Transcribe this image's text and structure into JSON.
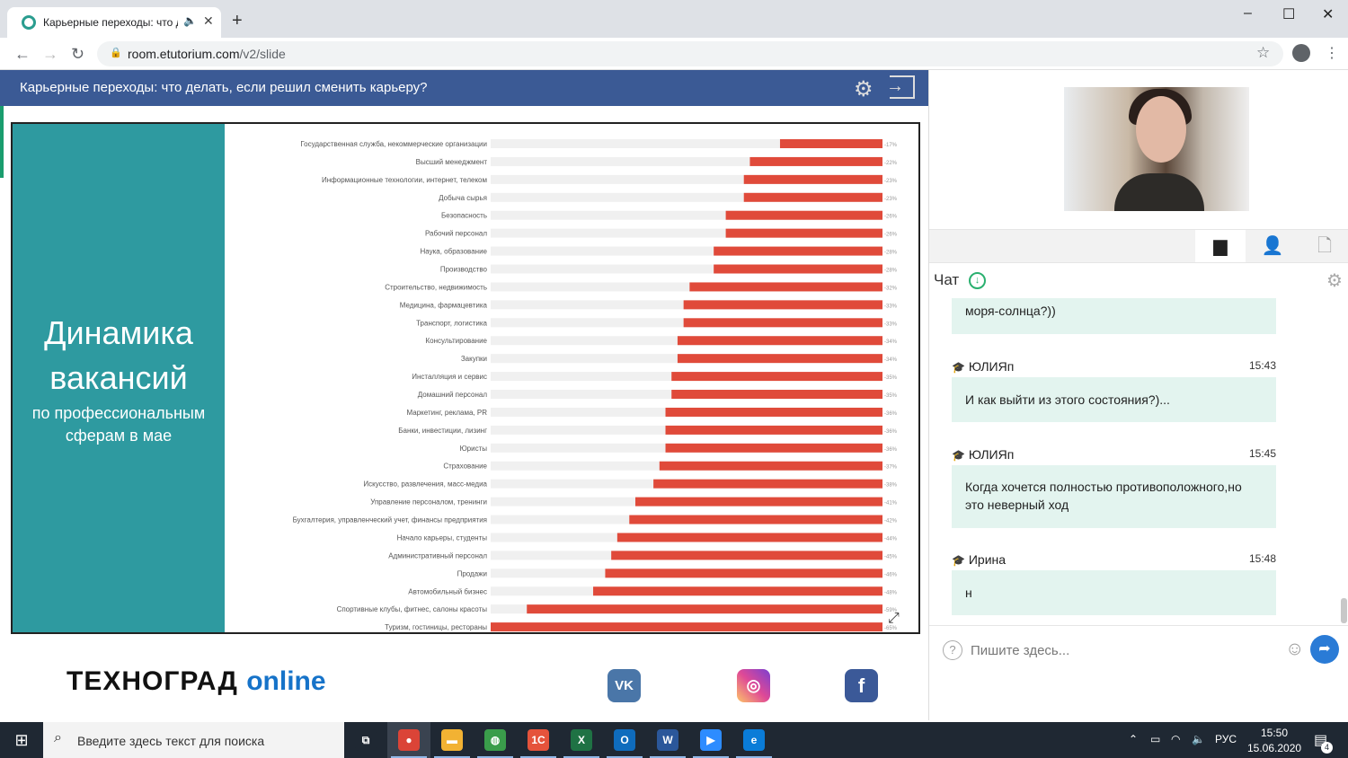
{
  "browser": {
    "tab_title": "Карьерные переходы: что д",
    "tab_audio_icon": "speaker-icon",
    "new_tab": "+",
    "url_host": "room.etutorium.com",
    "url_path": "/v2/slide",
    "window_controls": [
      "–",
      "☐",
      "✕"
    ]
  },
  "slide": {
    "header_title": "Карьерные переходы: что делать, если решил сменить карьеру?",
    "left_title_line1": "Динамика",
    "left_title_line2": "вакансий",
    "left_subtitle_line1": "по профессиональным",
    "left_subtitle_line2": "сферам в мае"
  },
  "chart_data": {
    "type": "bar",
    "orientation": "horizontal",
    "categories": [
      "Государственная служба, некоммерческие организации",
      "Высший менеджмент",
      "Информационные технологии, интернет, телеком",
      "Добыча сырья",
      "Безопасность",
      "Рабочий персонал",
      "Наука, образование",
      "Производство",
      "Строительство, недвижимость",
      "Медицина, фармацевтика",
      "Транспорт, логистика",
      "Консультирование",
      "Закупки",
      "Инсталляция и сервис",
      "Домашний персонал",
      "Маркетинг, реклама, PR",
      "Банки, инвестиции, лизинг",
      "Юристы",
      "Страхование",
      "Искусство, развлечения, масс-медиа",
      "Управление персоналом, тренинги",
      "Бухгалтерия, управленческий учет, финансы предприятия",
      "Начало карьеры, студенты",
      "Административный персонал",
      "Продажи",
      "Автомобильный бизнес",
      "Спортивные клубы, фитнес, салоны красоты",
      "Туризм, гостиницы, рестораны"
    ],
    "values": [
      -17,
      -22,
      -23,
      -23,
      -26,
      -26,
      -28,
      -28,
      -32,
      -33,
      -33,
      -34,
      -34,
      -35,
      -35,
      -36,
      -36,
      -36,
      -37,
      -38,
      -41,
      -42,
      -44,
      -45,
      -46,
      -48,
      -59,
      -65
    ],
    "value_labels": [
      "-17%",
      "-22%",
      "-23%",
      "-23%",
      "-26%",
      "-26%",
      "-28%",
      "-28%",
      "-32%",
      "-33%",
      "-33%",
      "-34%",
      "-34%",
      "-35%",
      "-35%",
      "-36%",
      "-36%",
      "-36%",
      "-37%",
      "-38%",
      "-41%",
      "-42%",
      "-44%",
      "-45%",
      "-46%",
      "-48%",
      "-59%",
      "-65%"
    ],
    "xlim": [
      -65,
      0
    ],
    "bar_color": "#e04a3a",
    "track_color": "#f0f0f0"
  },
  "footer": {
    "logo_main": "ТЕХНОГРАД",
    "logo_suffix": "online",
    "social": [
      {
        "name": "vk",
        "label": "VK",
        "color": "#4a76a8"
      },
      {
        "name": "instagram",
        "label": "◎",
        "color": "#df4996"
      },
      {
        "name": "facebook",
        "label": "f",
        "color": "#3b5998"
      }
    ]
  },
  "chat": {
    "title": "Чат",
    "messages": [
      {
        "author": "",
        "time": "",
        "text": "моря-солнца?))"
      },
      {
        "author": "ЮЛИЯп",
        "time": "15:43",
        "text": "И как выйти из этого состояния?)..."
      },
      {
        "author": "ЮЛИЯп",
        "time": "15:45",
        "text": "Когда хочется полностью противоположного,но это неверный ход"
      },
      {
        "author": "Ирина",
        "time": "15:48",
        "text": "н"
      }
    ],
    "input_placeholder": "Пишите здесь...",
    "help": "?"
  },
  "taskbar": {
    "search_placeholder": "Введите здесь текст для поиска",
    "language": "РУС",
    "time": "15:50",
    "date": "15.06.2020",
    "notifications_count": "4",
    "apps": [
      {
        "name": "task-view",
        "label": "⧉",
        "color": "#1f2833"
      },
      {
        "name": "chrome",
        "label": "●",
        "color": "#db4437"
      },
      {
        "name": "file-explorer",
        "label": "▬",
        "color": "#f2b233"
      },
      {
        "name": "maps-app",
        "label": "◍",
        "color": "#3a9d4b"
      },
      {
        "name": "1c-app",
        "label": "1С",
        "color": "#e5533b"
      },
      {
        "name": "excel",
        "label": "X",
        "color": "#1f7244"
      },
      {
        "name": "outlook",
        "label": "O",
        "color": "#0f6cbd"
      },
      {
        "name": "word",
        "label": "W",
        "color": "#2b579a"
      },
      {
        "name": "zoom",
        "label": "▶",
        "color": "#2d8cff"
      },
      {
        "name": "edge",
        "label": "e",
        "color": "#0a7cd8"
      }
    ]
  }
}
